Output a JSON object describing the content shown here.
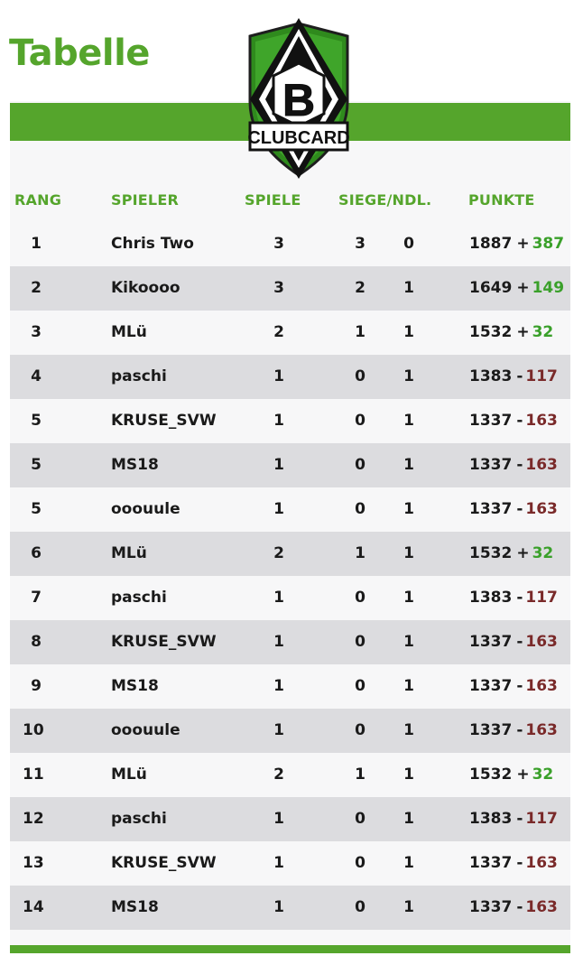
{
  "page": {
    "title": "Tabelle"
  },
  "logo": {
    "letter": "B",
    "label": "CLUBCARD"
  },
  "colors": {
    "accent": "#55a52c",
    "positive": "#3aa02a",
    "negative": "#7a2a2a"
  },
  "table": {
    "headers": {
      "rank": "RANG",
      "player": "SPIELER",
      "games": "SPIELE",
      "wins_losses": "SIEGE/NDL.",
      "points": "PUNKTE"
    },
    "rows": [
      {
        "rank": "1",
        "player": "Chris Two",
        "games": "3",
        "wins": "3",
        "losses": "0",
        "points": "1887",
        "sign": "+",
        "delta": "387",
        "trend": "pos"
      },
      {
        "rank": "2",
        "player": "Kikoooo",
        "games": "3",
        "wins": "2",
        "losses": "1",
        "points": "1649",
        "sign": "+",
        "delta": "149",
        "trend": "pos"
      },
      {
        "rank": "3",
        "player": "MLü",
        "games": "2",
        "wins": "1",
        "losses": "1",
        "points": "1532",
        "sign": "+",
        "delta": "32",
        "trend": "pos"
      },
      {
        "rank": "4",
        "player": "paschi",
        "games": "1",
        "wins": "0",
        "losses": "1",
        "points": "1383",
        "sign": "-",
        "delta": "117",
        "trend": "neg"
      },
      {
        "rank": "5",
        "player": "KRUSE_SVW",
        "games": "1",
        "wins": "0",
        "losses": "1",
        "points": "1337",
        "sign": "-",
        "delta": "163",
        "trend": "neg"
      },
      {
        "rank": "5",
        "player": "MS18",
        "games": "1",
        "wins": "0",
        "losses": "1",
        "points": "1337",
        "sign": "-",
        "delta": "163",
        "trend": "neg"
      },
      {
        "rank": "5",
        "player": "ooouule",
        "games": "1",
        "wins": "0",
        "losses": "1",
        "points": "1337",
        "sign": "-",
        "delta": "163",
        "trend": "neg"
      },
      {
        "rank": "6",
        "player": "MLü",
        "games": "2",
        "wins": "1",
        "losses": "1",
        "points": "1532",
        "sign": "+",
        "delta": "32",
        "trend": "pos"
      },
      {
        "rank": "7",
        "player": "paschi",
        "games": "1",
        "wins": "0",
        "losses": "1",
        "points": "1383",
        "sign": "-",
        "delta": "117",
        "trend": "neg"
      },
      {
        "rank": "8",
        "player": "KRUSE_SVW",
        "games": "1",
        "wins": "0",
        "losses": "1",
        "points": "1337",
        "sign": "-",
        "delta": "163",
        "trend": "neg"
      },
      {
        "rank": "9",
        "player": "MS18",
        "games": "1",
        "wins": "0",
        "losses": "1",
        "points": "1337",
        "sign": "-",
        "delta": "163",
        "trend": "neg"
      },
      {
        "rank": "10",
        "player": "ooouule",
        "games": "1",
        "wins": "0",
        "losses": "1",
        "points": "1337",
        "sign": "-",
        "delta": "163",
        "trend": "neg"
      },
      {
        "rank": "11",
        "player": "MLü",
        "games": "2",
        "wins": "1",
        "losses": "1",
        "points": "1532",
        "sign": "+",
        "delta": "32",
        "trend": "pos"
      },
      {
        "rank": "12",
        "player": "paschi",
        "games": "1",
        "wins": "0",
        "losses": "1",
        "points": "1383",
        "sign": "-",
        "delta": "117",
        "trend": "neg"
      },
      {
        "rank": "13",
        "player": "KRUSE_SVW",
        "games": "1",
        "wins": "0",
        "losses": "1",
        "points": "1337",
        "sign": "-",
        "delta": "163",
        "trend": "neg"
      },
      {
        "rank": "14",
        "player": "MS18",
        "games": "1",
        "wins": "0",
        "losses": "1",
        "points": "1337",
        "sign": "-",
        "delta": "163",
        "trend": "neg"
      }
    ]
  }
}
